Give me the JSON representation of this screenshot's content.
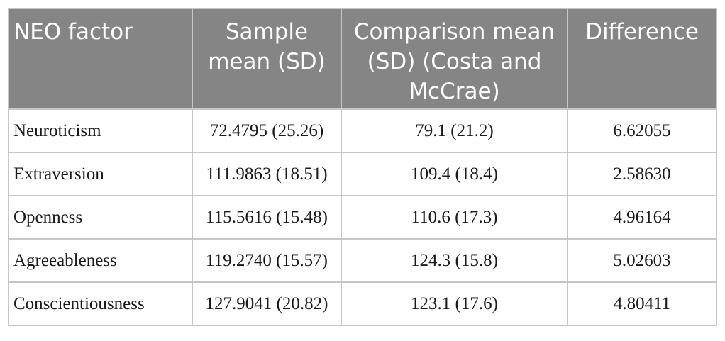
{
  "table": {
    "headers": [
      "NEO factor",
      "Sample mean (SD)",
      "Comparison mean (SD) (Costa and McCrae)",
      "Difference"
    ],
    "rows": [
      [
        "Neuroticism",
        "72.4795 (25.26)",
        "79.1 (21.2)",
        "6.62055"
      ],
      [
        "Extraversion",
        "111.9863 (18.51)",
        "109.4 (18.4)",
        "2.58630"
      ],
      [
        "Openness",
        "115.5616 (15.48)",
        "110.6 (17.3)",
        "4.96164"
      ],
      [
        "Agreeableness",
        "119.2740 (15.57)",
        "124.3 (15.8)",
        "5.02603"
      ],
      [
        "Conscientiousness",
        "127.9041 (20.82)",
        "123.1 (17.6)",
        "4.80411"
      ]
    ],
    "colors": {
      "header_background": "#858585",
      "header_text": "#ffffff",
      "border": "#c6c6c6"
    }
  }
}
